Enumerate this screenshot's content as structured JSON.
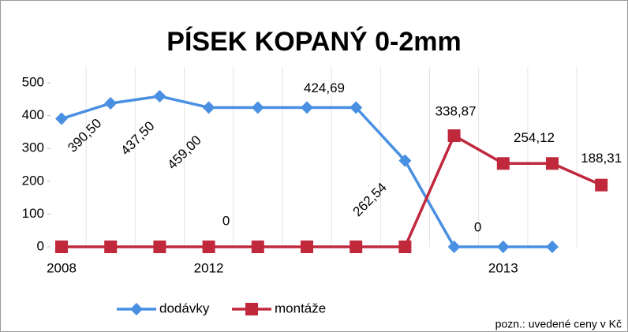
{
  "chart_data": {
    "type": "line",
    "title": "PÍSEK KOPANÝ 0-2mm",
    "categories": [
      "2008",
      null,
      null,
      "2012",
      null,
      null,
      null,
      null,
      null,
      "2013",
      null,
      null
    ],
    "series": [
      {
        "name": "dodávky",
        "color": "#4a90e2",
        "marker": "diamond",
        "values": [
          390.5,
          437.5,
          459.0,
          424.69,
          424.69,
          424.69,
          424.69,
          262.54,
          0,
          0,
          0,
          null
        ],
        "value_labels": [
          "390,50",
          "437,50",
          "459,00",
          null,
          null,
          "424,69",
          null,
          "262,54",
          "0",
          null,
          null,
          null
        ]
      },
      {
        "name": "montáže",
        "color": "#c0283c",
        "marker": "square",
        "values": [
          0,
          0,
          0,
          0,
          0,
          0,
          0,
          0,
          338.87,
          254.12,
          254.12,
          188.31
        ],
        "value_labels": [
          null,
          null,
          null,
          "0",
          null,
          null,
          null,
          null,
          "338,87",
          null,
          "254,12",
          "188,31"
        ]
      }
    ],
    "ylim": [
      0,
      500
    ],
    "yticks": [
      0,
      100,
      200,
      300,
      400,
      500
    ],
    "grid": "x",
    "legend": "bottom",
    "note": "pozn.: uvedené ceny v Kč"
  }
}
